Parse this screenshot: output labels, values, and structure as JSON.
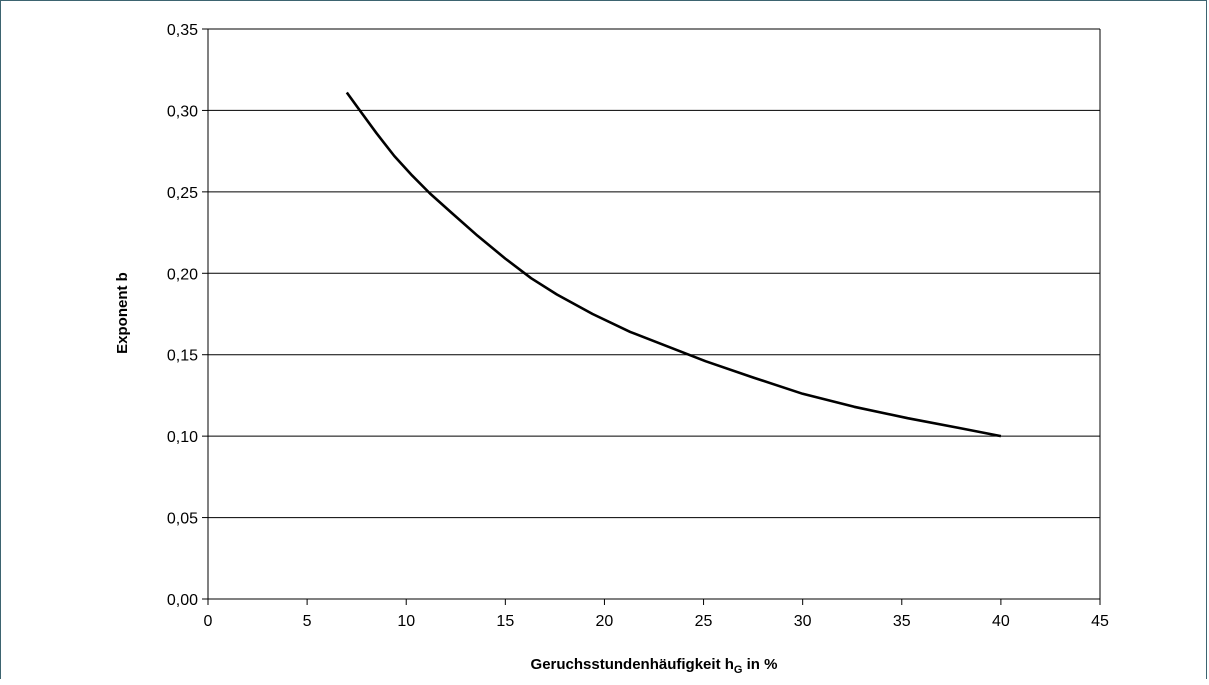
{
  "chart_data": {
    "type": "line",
    "title": "",
    "xlabel_main": "Geruchsstundenhäufigkeit h",
    "xlabel_sub": "G",
    "xlabel_tail": " in %",
    "ylabel": "Exponent b",
    "xlim": [
      0,
      45
    ],
    "ylim": [
      0,
      0.35
    ],
    "x_ticks": [
      "0",
      "5",
      "10",
      "15",
      "20",
      "25",
      "30",
      "35",
      "40",
      "45"
    ],
    "y_ticks": [
      "0,00",
      "0,05",
      "0,10",
      "0,15",
      "0,20",
      "0,25",
      "0,30",
      "0,35"
    ],
    "grid": "horizontal",
    "line_color": "#000000",
    "series": [
      {
        "x": [
          7.0,
          7.6,
          8.5,
          9.4,
          10.3,
          11.2,
          12.3,
          13.6,
          15.0,
          16.3,
          17.6,
          19.4,
          21.3,
          23.2,
          25.1,
          27.5,
          30.0,
          32.6,
          35.3,
          37.9,
          40.0
        ],
        "y": [
          0.311,
          0.301,
          0.286,
          0.272,
          0.26,
          0.249,
          0.237,
          0.223,
          0.209,
          0.197,
          0.187,
          0.175,
          0.164,
          0.155,
          0.146,
          0.136,
          0.126,
          0.118,
          0.111,
          0.105,
          0.1
        ]
      }
    ]
  }
}
